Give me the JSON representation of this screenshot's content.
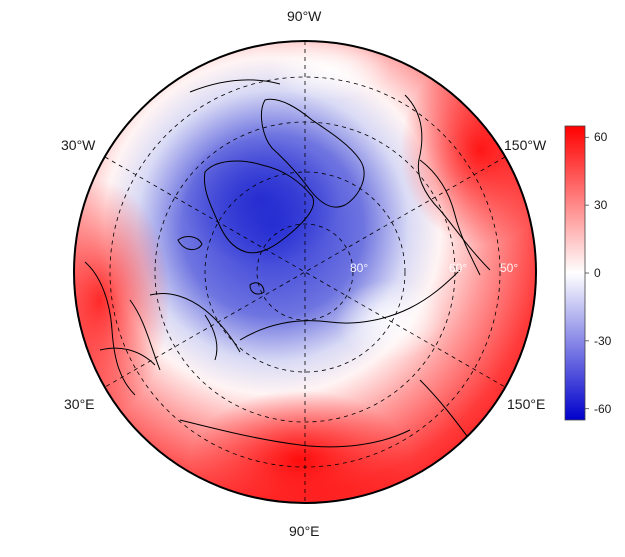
{
  "map": {
    "lon_labels": {
      "top": "90°W",
      "upper_left": "30°W",
      "upper_right": "150°W",
      "lower_left": "30°E",
      "lower_right": "150°E",
      "bottom": "90°E"
    },
    "lat_labels": [
      "80°",
      "60°",
      "50°"
    ],
    "palette": {
      "low": "#0000cc",
      "mid": "#ffffff",
      "high": "#ff0000"
    }
  },
  "colorbar": {
    "ticks": [
      "60",
      "30",
      "0",
      "-30",
      "-60"
    ],
    "range": [
      -65,
      65
    ],
    "tick_values": [
      60,
      30,
      0,
      -30,
      -60
    ]
  }
}
